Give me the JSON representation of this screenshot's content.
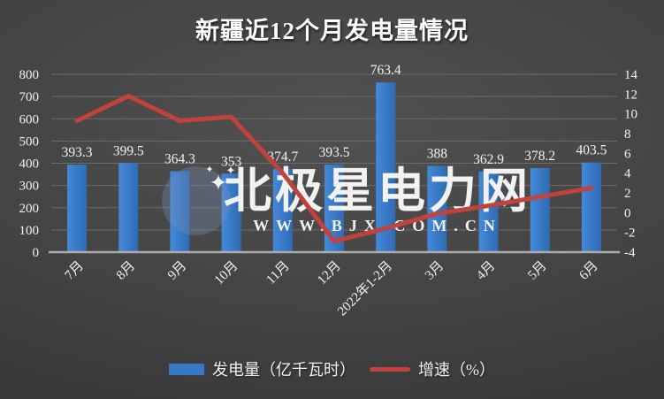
{
  "title": "新疆近12个月发电量情况",
  "chart_data": {
    "type": "bar+line combo",
    "title": "新疆近12个月发电量情况",
    "categories": [
      "7月",
      "8月",
      "9月",
      "10月",
      "11月",
      "12月",
      "2022年1-2月",
      "3月",
      "4月",
      "5月",
      "6月"
    ],
    "series": [
      {
        "name": "发电量（亿千瓦时）",
        "type": "bar",
        "axis": "left",
        "values": [
          393.3,
          399.5,
          364.3,
          353,
          374.7,
          393.5,
          763.4,
          388,
          362.9,
          378.2,
          403.5
        ],
        "data_labels_shown": true
      },
      {
        "name": "增速（%）",
        "type": "line",
        "axis": "right",
        "values": [
          9.3,
          11.8,
          9.3,
          9.7,
          4.0,
          -2.9,
          -1.6,
          -0.1,
          0.7,
          1.6,
          2.5
        ],
        "data_labels_shown": false
      }
    ],
    "left_axis": {
      "min": 0,
      "max": 800,
      "step": 100,
      "tick_labels": [
        "0",
        "100",
        "200",
        "300",
        "400",
        "500",
        "600",
        "700",
        "800"
      ]
    },
    "right_axis": {
      "min": -4,
      "max": 14,
      "step": 2,
      "tick_labels": [
        "-4",
        "-2",
        "0",
        "2",
        "4",
        "6",
        "8",
        "10",
        "12",
        "14"
      ]
    },
    "grid": true,
    "x_label_rotation_deg": -45,
    "legend_position": "bottom"
  },
  "legend": {
    "items": [
      {
        "label": "发电量（亿千瓦时）",
        "swatch": "bar"
      },
      {
        "label": "增速（%）",
        "swatch": "line"
      }
    ]
  },
  "watermark": {
    "brand": "北极星电力网",
    "url": "WWW.BJX.COM.CN",
    "logo": "crescent-moon-stars-icon"
  },
  "colors": {
    "background_center": "#515151",
    "background_mid": "#424242",
    "background_edge": "#323232",
    "bar": "#3779C7",
    "bar_light": "#4489DA",
    "bar_dark": "#2E6BB3",
    "line": "#C2423C",
    "gridline": "#6C6C6C",
    "axis_line": "#ACACAC",
    "text": "#F2F2F2",
    "wm_circle": "rgba(120,145,185,0.34)",
    "wm_moon": "rgba(238,243,250,0.55)",
    "wm_star": "rgba(245,248,253,0.60)",
    "wm_text": "rgba(145,165,200,0.36)",
    "wm_url": "rgba(190,200,218,0.32)"
  }
}
